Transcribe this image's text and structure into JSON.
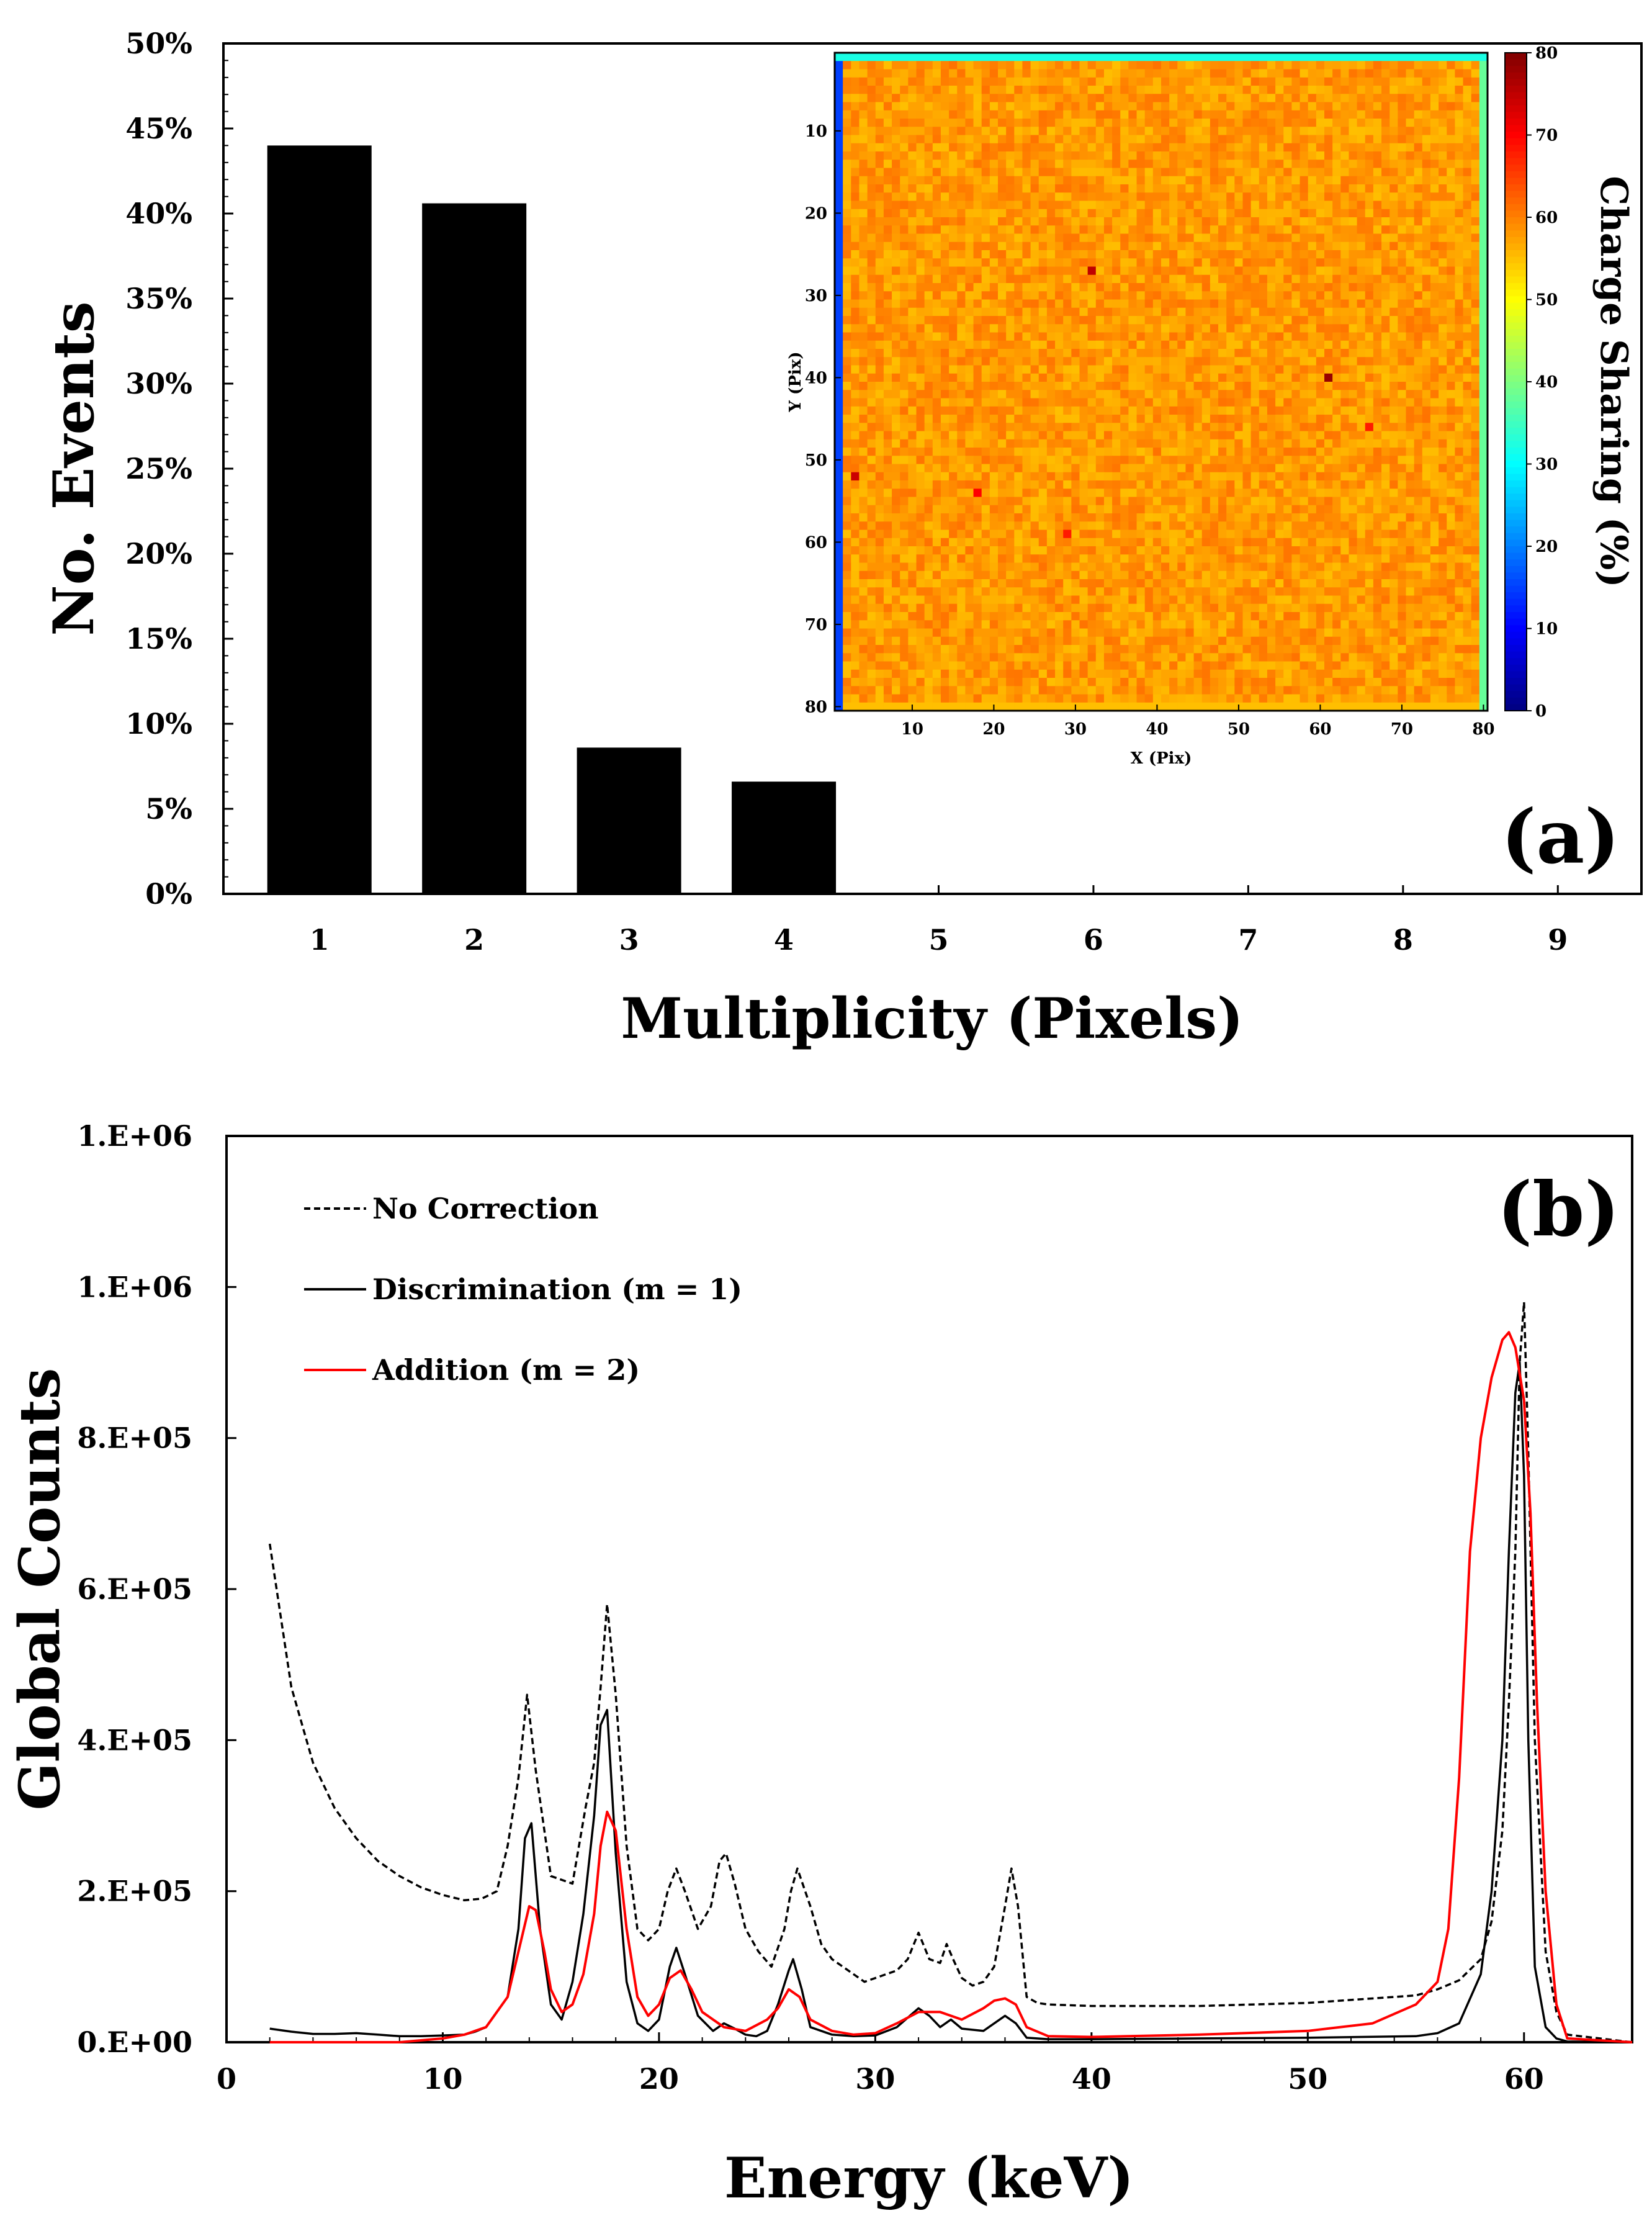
{
  "chart_data": [
    {
      "id": "a",
      "type": "bar",
      "panel_label": "(a)",
      "xlabel": "Multiplicity (Pixels)",
      "ylabel": "No. Events",
      "categories": [
        "1",
        "2",
        "3",
        "4",
        "5",
        "6",
        "7",
        "8",
        "9"
      ],
      "values": [
        44.0,
        40.6,
        8.6,
        6.6,
        0,
        0,
        0,
        0,
        0
      ],
      "ylim": [
        0,
        50
      ],
      "yticks": [
        "0%",
        "5%",
        "10%",
        "15%",
        "20%",
        "25%",
        "30%",
        "35%",
        "40%",
        "45%",
        "50%"
      ],
      "ytick_values": [
        0,
        5,
        10,
        15,
        20,
        25,
        30,
        35,
        40,
        45,
        50
      ],
      "colors": {
        "bar": "#000000"
      },
      "inset": {
        "type": "heatmap",
        "xlabel": "X (Pix)",
        "ylabel": "Y (Pix)",
        "xticks": [
          "10",
          "20",
          "30",
          "40",
          "50",
          "60",
          "70",
          "80"
        ],
        "yticks": [
          "10",
          "20",
          "30",
          "40",
          "50",
          "60",
          "70",
          "80"
        ],
        "tick_values": [
          10,
          20,
          30,
          40,
          50,
          60,
          70,
          80
        ],
        "grid_size": 80,
        "colorbar_label": "Charge Sharing (%)",
        "colorbar_ticks": [
          "0",
          "10",
          "20",
          "30",
          "40",
          "50",
          "60",
          "70",
          "80"
        ],
        "colorbar_tick_values": [
          0,
          10,
          20,
          30,
          40,
          50,
          60,
          70,
          80
        ],
        "range": [
          0,
          80
        ],
        "interior_mean": 58,
        "interior_noise": 3,
        "edge_top_value": 32,
        "edge_left_value": 15,
        "edge_right_value": 38,
        "edge_bottom_value": 55,
        "hotspots": [
          {
            "x": 32,
            "y": 27,
            "value": 75
          },
          {
            "x": 61,
            "y": 40,
            "value": 78
          },
          {
            "x": 3,
            "y": 52,
            "value": 74
          },
          {
            "x": 18,
            "y": 54,
            "value": 70
          },
          {
            "x": 29,
            "y": 59,
            "value": 68
          },
          {
            "x": 66,
            "y": 46,
            "value": 68
          }
        ]
      }
    },
    {
      "id": "b",
      "type": "line",
      "panel_label": "(b)",
      "xlabel": "Energy (keV)",
      "ylabel": "Global Counts",
      "xlim": [
        0,
        65
      ],
      "ylim": [
        0,
        1200000
      ],
      "xticks": [
        "0",
        "10",
        "20",
        "30",
        "40",
        "50",
        "60"
      ],
      "xtick_values": [
        0,
        10,
        20,
        30,
        40,
        50,
        60
      ],
      "yticks": [
        "0.E+00",
        "2.E+05",
        "4.E+05",
        "6.E+05",
        "8.E+05",
        "1.E+06",
        "1.E+06"
      ],
      "ytick_values": [
        0,
        200000,
        400000,
        600000,
        800000,
        1000000,
        1200000
      ],
      "series": [
        {
          "name": "No Correction",
          "style": "dashed",
          "color": "#000000",
          "x": [
            2,
            3,
            4,
            5,
            6,
            7,
            8,
            9,
            10,
            11,
            11.8,
            12.5,
            13,
            13.5,
            13.9,
            14.3,
            15,
            16,
            16.6,
            17,
            17.3,
            17.6,
            18,
            18.5,
            19,
            19.5,
            20,
            20.4,
            20.8,
            21.2,
            21.8,
            22.4,
            22.8,
            23.1,
            23.5,
            24,
            24.6,
            25.2,
            25.8,
            26.1,
            26.4,
            27,
            27.5,
            28,
            28.5,
            29,
            29.5,
            30,
            31,
            31.5,
            32,
            32.5,
            33,
            33.3,
            33.6,
            34,
            34.5,
            35,
            35.5,
            36,
            36.3,
            36.6,
            37,
            37.5,
            38,
            40,
            45,
            50,
            55,
            56,
            57,
            58,
            58.5,
            59,
            59.3,
            59.6,
            59.8,
            60,
            60.2,
            60.5,
            61,
            61.5,
            62,
            65
          ],
          "y": [
            660000,
            470000,
            370000,
            310000,
            270000,
            240000,
            220000,
            205000,
            195000,
            188000,
            190000,
            200000,
            260000,
            350000,
            460000,
            360000,
            220000,
            210000,
            310000,
            370000,
            470000,
            580000,
            460000,
            260000,
            150000,
            135000,
            150000,
            200000,
            230000,
            200000,
            150000,
            180000,
            240000,
            250000,
            210000,
            150000,
            120000,
            100000,
            150000,
            200000,
            230000,
            180000,
            130000,
            110000,
            100000,
            90000,
            80000,
            85000,
            95000,
            110000,
            145000,
            110000,
            105000,
            130000,
            110000,
            85000,
            75000,
            80000,
            100000,
            180000,
            230000,
            180000,
            60000,
            52000,
            50000,
            48000,
            48000,
            52000,
            62000,
            70000,
            82000,
            110000,
            160000,
            280000,
            450000,
            650000,
            900000,
            980000,
            780000,
            400000,
            120000,
            40000,
            10000,
            0
          ]
        },
        {
          "name": "Discrimination (m = 1)",
          "style": "solid",
          "color": "#000000",
          "x": [
            2,
            3,
            4,
            5,
            6,
            7,
            8,
            9,
            10,
            11,
            11.5,
            12,
            13,
            13.5,
            13.8,
            14.1,
            14.5,
            15,
            15.5,
            16,
            16.5,
            17,
            17.3,
            17.6,
            18,
            18.5,
            19,
            19.5,
            20,
            20.5,
            20.8,
            21.2,
            21.8,
            22.5,
            23,
            23.5,
            24,
            24.5,
            25,
            25.5,
            26,
            26.2,
            26.6,
            27,
            28,
            29,
            30,
            31,
            32,
            32.5,
            33,
            33.5,
            34,
            35,
            36,
            36.5,
            37,
            38,
            40,
            45,
            50,
            55,
            56,
            57,
            58,
            58.5,
            59,
            59.3,
            59.6,
            59.8,
            60,
            60.2,
            60.5,
            61,
            61.5,
            62,
            65
          ],
          "y": [
            18000,
            14000,
            11000,
            11000,
            12000,
            10000,
            8000,
            8000,
            9000,
            10000,
            14000,
            20000,
            60000,
            150000,
            270000,
            290000,
            150000,
            50000,
            30000,
            80000,
            170000,
            300000,
            420000,
            440000,
            250000,
            80000,
            25000,
            15000,
            30000,
            100000,
            125000,
            90000,
            35000,
            15000,
            25000,
            18000,
            10000,
            8000,
            15000,
            50000,
            95000,
            110000,
            70000,
            20000,
            10000,
            8000,
            9000,
            20000,
            45000,
            35000,
            20000,
            30000,
            18000,
            15000,
            35000,
            25000,
            6000,
            4000,
            4000,
            5000,
            6000,
            8000,
            12000,
            25000,
            90000,
            200000,
            400000,
            650000,
            860000,
            900000,
            750000,
            400000,
            100000,
            20000,
            5000,
            1000,
            0
          ]
        },
        {
          "name": "Addition (m = 2)",
          "style": "solid",
          "color": "#ff0000",
          "x": [
            2,
            5,
            8,
            10,
            11,
            12,
            13,
            13.5,
            14,
            14.3,
            14.7,
            15,
            15.5,
            16,
            16.5,
            17,
            17.3,
            17.6,
            18,
            18.5,
            19,
            19.5,
            20,
            20.5,
            21,
            21.5,
            22,
            23,
            24,
            25,
            25.5,
            26,
            26.5,
            27,
            28,
            29,
            30,
            31,
            32,
            33,
            33.5,
            34,
            35,
            35.5,
            36,
            36.5,
            37,
            38,
            40,
            45,
            50,
            53,
            55,
            56,
            56.5,
            57,
            57.5,
            58,
            58.5,
            59,
            59.3,
            59.6,
            60,
            60.3,
            60.6,
            61,
            61.5,
            62,
            65
          ],
          "y": [
            0,
            0,
            0,
            5000,
            10000,
            20000,
            60000,
            120000,
            180000,
            175000,
            120000,
            70000,
            40000,
            50000,
            90000,
            170000,
            260000,
            305000,
            280000,
            150000,
            60000,
            35000,
            50000,
            85000,
            95000,
            70000,
            40000,
            20000,
            15000,
            30000,
            45000,
            70000,
            60000,
            30000,
            15000,
            10000,
            12000,
            25000,
            40000,
            40000,
            35000,
            30000,
            45000,
            55000,
            58000,
            50000,
            20000,
            8000,
            7000,
            10000,
            15000,
            25000,
            50000,
            80000,
            150000,
            350000,
            650000,
            800000,
            880000,
            930000,
            940000,
            920000,
            850000,
            700000,
            450000,
            200000,
            50000,
            5000,
            0
          ]
        }
      ],
      "legend": [
        "No Correction",
        "Discrimination (m = 1)",
        "Addition (m = 2)"
      ]
    }
  ]
}
